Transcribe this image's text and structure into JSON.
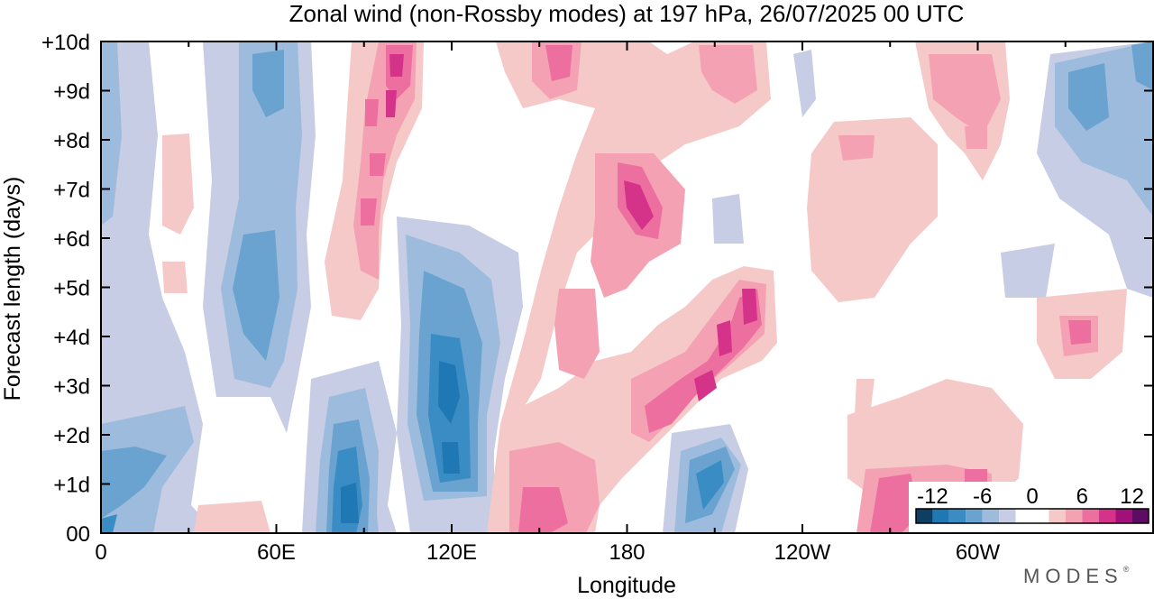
{
  "chart_data": {
    "type": "heatmap",
    "title": "Zonal wind (non-Rossby modes) at 197 hPa,  26/07/2025  00 UTC",
    "xlabel": "Longitude",
    "ylabel": "Forecast length (days)",
    "x_ticks": [
      {
        "lon": 0,
        "label": "0"
      },
      {
        "lon": 60,
        "label": "60E"
      },
      {
        "lon": 120,
        "label": "120E"
      },
      {
        "lon": 180,
        "label": "180"
      },
      {
        "lon": 240,
        "label": "120W"
      },
      {
        "lon": 300,
        "label": "60W"
      }
    ],
    "x_minor_step": 30,
    "xlim": [
      0,
      360
    ],
    "y_ticks": [
      {
        "day": 0,
        "label": "00"
      },
      {
        "day": 1,
        "label": "+1d"
      },
      {
        "day": 2,
        "label": "+2d"
      },
      {
        "day": 3,
        "label": "+3d"
      },
      {
        "day": 4,
        "label": "+4d"
      },
      {
        "day": 5,
        "label": "+5d"
      },
      {
        "day": 6,
        "label": "+6d"
      },
      {
        "day": 7,
        "label": "+7d"
      },
      {
        "day": 8,
        "label": "+8d"
      },
      {
        "day": 9,
        "label": "+9d"
      },
      {
        "day": 10,
        "label": "+10d"
      }
    ],
    "ylim": [
      0,
      10
    ],
    "colorbar": {
      "levels": [
        -14,
        -12,
        -10,
        -8,
        -6,
        -4,
        -2,
        2,
        4,
        6,
        8,
        10,
        12,
        14
      ],
      "colors": [
        "#0d3f63",
        "#1f77b4",
        "#3a8cc4",
        "#6aa3cf",
        "#9dbcdd",
        "#c6cde4",
        "#ffffff",
        "#f6c9c9",
        "#f4a2b3",
        "#ec6fa0",
        "#d5338a",
        "#a2107a",
        "#5e0b63"
      ],
      "tick_labels": [
        "-12",
        "-6",
        "0",
        "6",
        "12"
      ],
      "tick_values": [
        -12,
        -6,
        0,
        6,
        12
      ],
      "position": "bottom-right"
    },
    "features": [
      {
        "name": "negative band 0-20E",
        "lon": 8,
        "day_start": 0,
        "day_end": 10,
        "value": -6
      },
      {
        "name": "negative band 60E",
        "lon": 58,
        "day_start": 3,
        "day_end": 10,
        "value": -8
      },
      {
        "name": "negative core 85E",
        "lon": 83,
        "day_start": 0,
        "day_end": 2.5,
        "value": -10
      },
      {
        "name": "negative core 120E",
        "lon": 122,
        "day_start": 0.5,
        "day_end": 4.5,
        "value": -12
      },
      {
        "name": "positive streak 100E",
        "lon": 100,
        "day_start": 5,
        "day_end": 10,
        "value": 8
      },
      {
        "name": "positive diagonal 150E-150W",
        "lon": 190,
        "day_start": 0,
        "day_end": 8,
        "value": 8
      },
      {
        "name": "negative core 160W",
        "lon": 197,
        "day_start": 0,
        "day_end": 2,
        "value": -10
      },
      {
        "name": "positive area 100W-60W",
        "lon": 280,
        "day_start": 0,
        "day_end": 3,
        "value": 6
      },
      {
        "name": "negative band 40W",
        "lon": 330,
        "day_start": 6,
        "day_end": 10,
        "value": -8
      }
    ]
  },
  "brand": "MODES",
  "brand_mark": "®"
}
